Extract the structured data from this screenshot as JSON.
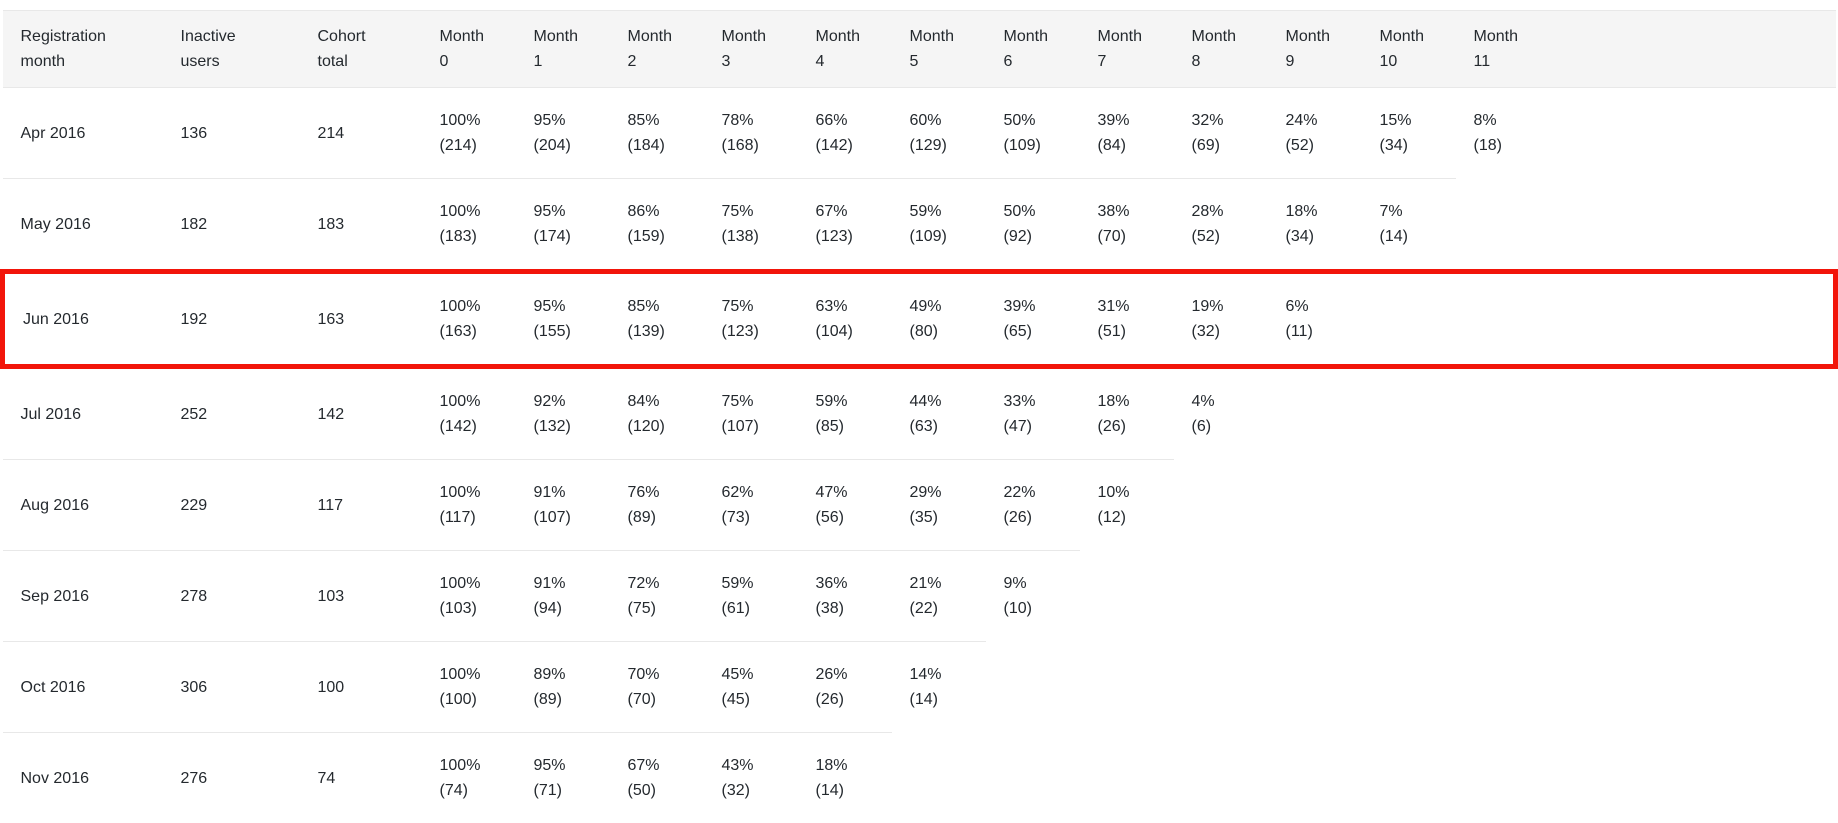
{
  "chart_data": {
    "type": "table",
    "columns": [
      "Registration month",
      "Inactive users",
      "Cohort total",
      "Month 0",
      "Month 1",
      "Month 2",
      "Month 3",
      "Month 4",
      "Month 5",
      "Month 6",
      "Month 7",
      "Month 8",
      "Month 9",
      "Month 10",
      "Month 11"
    ],
    "rows": [
      {
        "registration_month": "Apr 2016",
        "inactive_users": 136,
        "cohort_total": 214,
        "retention_pct": [
          100,
          95,
          85,
          78,
          66,
          60,
          50,
          39,
          32,
          24,
          15,
          8
        ],
        "retention_count": [
          214,
          204,
          184,
          168,
          142,
          129,
          109,
          84,
          69,
          52,
          34,
          18
        ]
      },
      {
        "registration_month": "May 2016",
        "inactive_users": 182,
        "cohort_total": 183,
        "retention_pct": [
          100,
          95,
          86,
          75,
          67,
          59,
          50,
          38,
          28,
          18,
          7
        ],
        "retention_count": [
          183,
          174,
          159,
          138,
          123,
          109,
          92,
          70,
          52,
          34,
          14
        ]
      },
      {
        "registration_month": "Jun 2016",
        "inactive_users": 192,
        "cohort_total": 163,
        "retention_pct": [
          100,
          95,
          85,
          75,
          63,
          49,
          39,
          31,
          19,
          6
        ],
        "retention_count": [
          163,
          155,
          139,
          123,
          104,
          80,
          65,
          51,
          32,
          11
        ]
      },
      {
        "registration_month": "Jul 2016",
        "inactive_users": 252,
        "cohort_total": 142,
        "retention_pct": [
          100,
          92,
          84,
          75,
          59,
          44,
          33,
          18,
          4
        ],
        "retention_count": [
          142,
          132,
          120,
          107,
          85,
          63,
          47,
          26,
          6
        ]
      },
      {
        "registration_month": "Aug 2016",
        "inactive_users": 229,
        "cohort_total": 117,
        "retention_pct": [
          100,
          91,
          76,
          62,
          47,
          29,
          22,
          10
        ],
        "retention_count": [
          117,
          107,
          89,
          73,
          56,
          35,
          26,
          12
        ]
      },
      {
        "registration_month": "Sep 2016",
        "inactive_users": 278,
        "cohort_total": 103,
        "retention_pct": [
          100,
          91,
          72,
          59,
          36,
          21,
          9
        ],
        "retention_count": [
          103,
          94,
          75,
          61,
          38,
          22,
          10
        ]
      },
      {
        "registration_month": "Oct 2016",
        "inactive_users": 306,
        "cohort_total": 100,
        "retention_pct": [
          100,
          89,
          70,
          45,
          26,
          14
        ],
        "retention_count": [
          100,
          89,
          70,
          45,
          26,
          14
        ]
      },
      {
        "registration_month": "Nov 2016",
        "inactive_users": 276,
        "cohort_total": 74,
        "retention_pct": [
          100,
          95,
          67,
          43,
          18
        ],
        "retention_count": [
          74,
          71,
          50,
          32,
          14
        ]
      }
    ],
    "highlighted_row": "Jun 2016"
  },
  "colors": {
    "highlight_border": "#f2150a",
    "header_background": "#f5f5f5",
    "row_divider": "#e8e8e8",
    "text": "#24292e",
    "background": "#ffffff"
  }
}
